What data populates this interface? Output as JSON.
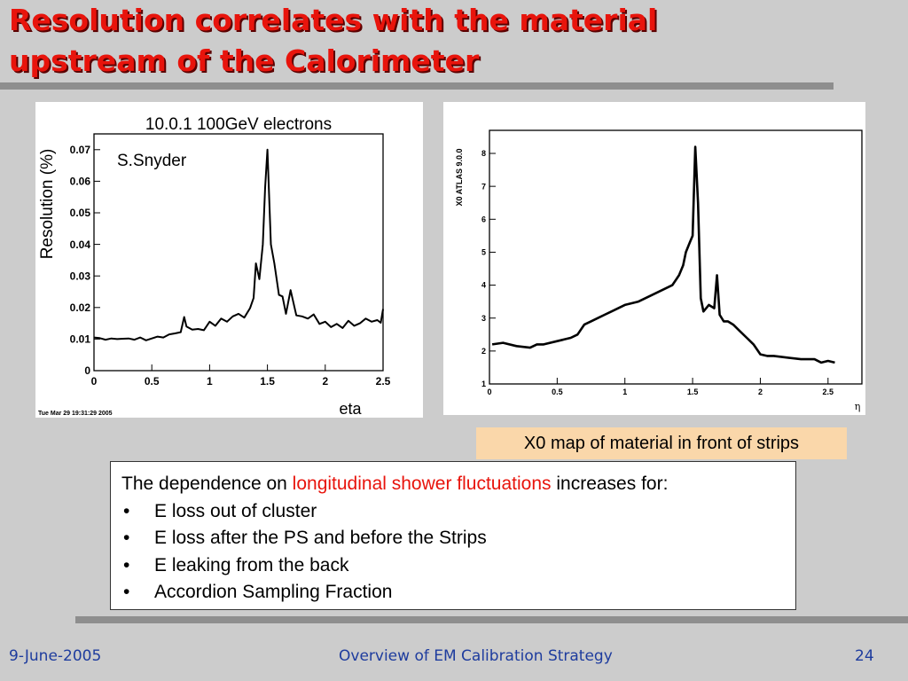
{
  "slide": {
    "title_line1": "Resolution correlates with the material",
    "title_line2": "upstream of the Calorimeter",
    "caption": "X0 map of material in front of strips",
    "text_intro": "The dependence on ",
    "text_highlight": "longitudinal shower fluctuations",
    "text_tail": " increases for:",
    "bullets": [
      "E loss out of cluster",
      "E loss after the PS and before the Strips",
      "E leaking from the back",
      "Accordion Sampling Fraction"
    ],
    "footer_date": "9-June-2005",
    "footer_center": "Overview of EM Calibration Strategy",
    "footer_page": "24"
  },
  "colors": {
    "title": "#e8140c",
    "highlight": "#e8140c",
    "footer": "#1e3c9e",
    "caption_bg": "#fad7aa",
    "slide_bg": "#cccccc"
  },
  "chart_data": [
    {
      "type": "line",
      "title": "10.0.1 100GeV electrons",
      "annotation": "S.Snyder",
      "xlabel": "eta",
      "ylabel": "Resolution (%)",
      "timestamp": "Tue Mar 29 19:31:29 2005",
      "xlim": [
        0,
        2.5
      ],
      "ylim": [
        0,
        0.075
      ],
      "xticks": [
        {
          "v": 0,
          "label": "0"
        },
        {
          "v": 0.5,
          "label": "0.5"
        },
        {
          "v": 1,
          "label": "1"
        },
        {
          "v": 1.5,
          "label": "1.5"
        },
        {
          "v": 2,
          "label": "2"
        },
        {
          "v": 2.5,
          "label": "2.5"
        }
      ],
      "yticks": [
        {
          "v": 0,
          "label": "0"
        },
        {
          "v": 0.01,
          "label": "0.01"
        },
        {
          "v": 0.02,
          "label": "0.02"
        },
        {
          "v": 0.03,
          "label": "0.03"
        },
        {
          "v": 0.04,
          "label": "0.04"
        },
        {
          "v": 0.05,
          "label": "0.05"
        },
        {
          "v": 0.06,
          "label": "0.06"
        },
        {
          "v": 0.07,
          "label": "0.07"
        }
      ],
      "x": [
        0,
        0.05,
        0.1,
        0.15,
        0.2,
        0.25,
        0.3,
        0.35,
        0.4,
        0.45,
        0.5,
        0.55,
        0.6,
        0.65,
        0.7,
        0.75,
        0.78,
        0.8,
        0.85,
        0.9,
        0.95,
        1.0,
        1.05,
        1.1,
        1.15,
        1.2,
        1.25,
        1.3,
        1.35,
        1.38,
        1.4,
        1.43,
        1.46,
        1.48,
        1.5,
        1.53,
        1.56,
        1.6,
        1.63,
        1.66,
        1.7,
        1.75,
        1.8,
        1.85,
        1.9,
        1.95,
        2.0,
        2.05,
        2.1,
        2.15,
        2.2,
        2.25,
        2.3,
        2.35,
        2.4,
        2.45,
        2.48,
        2.5
      ],
      "y": [
        0.0105,
        0.0103,
        0.0098,
        0.0102,
        0.01,
        0.0101,
        0.0102,
        0.0098,
        0.0105,
        0.0096,
        0.0102,
        0.0108,
        0.0105,
        0.0115,
        0.0118,
        0.0122,
        0.017,
        0.014,
        0.013,
        0.0132,
        0.0128,
        0.0155,
        0.0142,
        0.0165,
        0.0155,
        0.0172,
        0.018,
        0.0168,
        0.0198,
        0.023,
        0.034,
        0.029,
        0.04,
        0.058,
        0.07,
        0.04,
        0.034,
        0.024,
        0.0235,
        0.018,
        0.0255,
        0.0175,
        0.0172,
        0.0165,
        0.0178,
        0.0148,
        0.0155,
        0.0138,
        0.0148,
        0.0135,
        0.0158,
        0.0142,
        0.015,
        0.0165,
        0.0155,
        0.016,
        0.0152,
        0.0195
      ]
    },
    {
      "type": "line",
      "title": "",
      "ylabel": "X0  ATLAS 9.0.0",
      "xlabel": "η",
      "xlim": [
        0,
        2.75
      ],
      "ylim": [
        1,
        8.7
      ],
      "xticks": [
        {
          "v": 0,
          "label": "0"
        },
        {
          "v": 0.5,
          "label": "0.5"
        },
        {
          "v": 1,
          "label": "1"
        },
        {
          "v": 1.5,
          "label": "1.5"
        },
        {
          "v": 2,
          "label": "2"
        },
        {
          "v": 2.5,
          "label": "2.5"
        }
      ],
      "yticks": [
        {
          "v": 1,
          "label": "1"
        },
        {
          "v": 2,
          "label": "2"
        },
        {
          "v": 3,
          "label": "3"
        },
        {
          "v": 4,
          "label": "4"
        },
        {
          "v": 5,
          "label": "5"
        },
        {
          "v": 6,
          "label": "6"
        },
        {
          "v": 7,
          "label": "7"
        },
        {
          "v": 8,
          "label": "8"
        }
      ],
      "x": [
        0.02,
        0.1,
        0.2,
        0.3,
        0.35,
        0.4,
        0.5,
        0.6,
        0.65,
        0.7,
        0.75,
        0.8,
        0.85,
        0.9,
        1.0,
        1.1,
        1.2,
        1.3,
        1.35,
        1.4,
        1.43,
        1.45,
        1.48,
        1.5,
        1.52,
        1.54,
        1.56,
        1.58,
        1.62,
        1.66,
        1.68,
        1.7,
        1.73,
        1.76,
        1.8,
        1.85,
        1.9,
        1.95,
        2.0,
        2.05,
        2.1,
        2.2,
        2.3,
        2.4,
        2.45,
        2.5,
        2.55
      ],
      "y": [
        2.2,
        2.25,
        2.15,
        2.1,
        2.2,
        2.2,
        2.3,
        2.4,
        2.5,
        2.8,
        2.9,
        3.0,
        3.1,
        3.2,
        3.4,
        3.5,
        3.7,
        3.9,
        4.0,
        4.3,
        4.6,
        5.0,
        5.3,
        5.5,
        8.2,
        6.5,
        3.6,
        3.2,
        3.4,
        3.3,
        4.3,
        3.1,
        2.9,
        2.9,
        2.8,
        2.6,
        2.4,
        2.2,
        1.9,
        1.85,
        1.85,
        1.8,
        1.75,
        1.75,
        1.65,
        1.7,
        1.65
      ]
    }
  ]
}
